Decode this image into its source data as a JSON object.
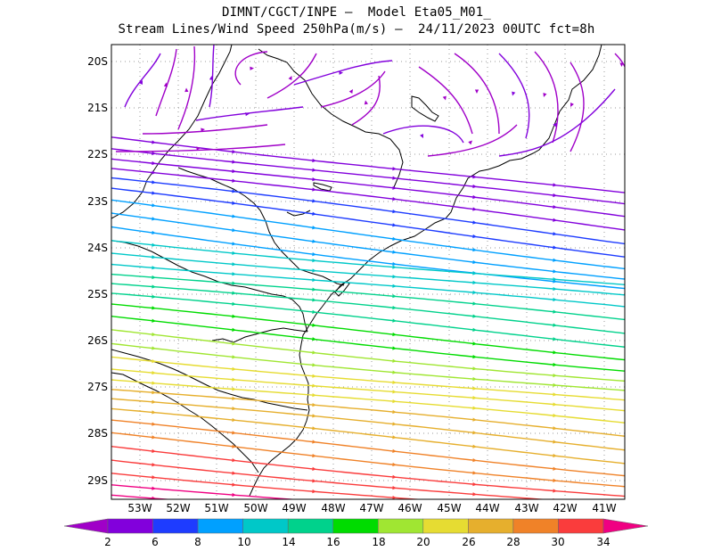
{
  "header": {
    "line1": "DIMNT/CGCT/INPE –  Model Eta05_M01_",
    "line2": "Stream Lines/Wind Speed 250hPa(m/s) –  24/11/2023 00UTC fct=8h"
  },
  "map": {
    "lat_labels": [
      "20S",
      "21S",
      "22S",
      "23S",
      "24S",
      "25S",
      "26S",
      "27S",
      "28S",
      "29S"
    ],
    "lon_labels": [
      "53W",
      "52W",
      "51W",
      "50W",
      "49W",
      "48W",
      "47W",
      "46W",
      "45W",
      "44W",
      "43W",
      "42W",
      "41W"
    ],
    "lat_range": [
      -29.5,
      -19.9
    ],
    "lon_range": [
      -53.9,
      -40.6
    ]
  },
  "colorbar": {
    "tick_labels": [
      "2",
      "6",
      "8",
      "10",
      "14",
      "16",
      "18",
      "20",
      "26",
      "28",
      "30",
      "34"
    ],
    "colors": [
      "#a000c8",
      "#8200dc",
      "#1e3cff",
      "#00a0ff",
      "#00c8c8",
      "#00d28c",
      "#00dc00",
      "#a0e632",
      "#e6dc32",
      "#e6af2d",
      "#f08228",
      "#fa3c3c",
      "#f00082"
    ],
    "units": "m/s"
  }
}
